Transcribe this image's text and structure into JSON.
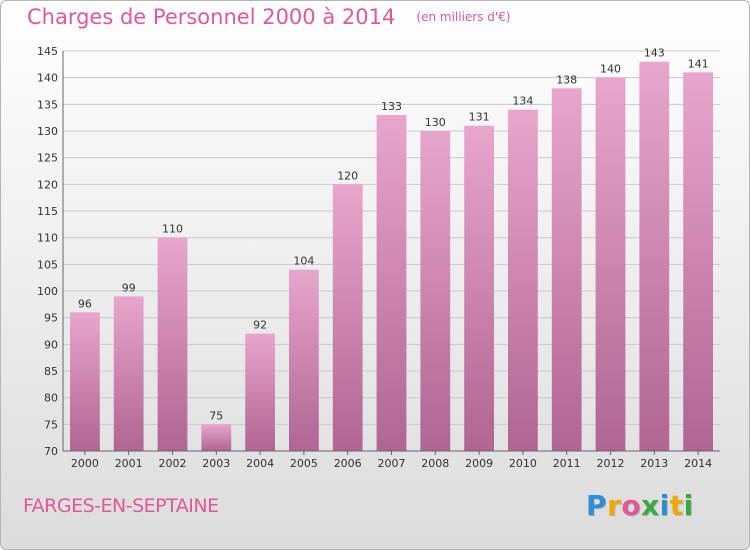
{
  "title": "Charges de Personnel 2000 à 2014",
  "subtitle": "(en milliers d'€)",
  "place": "FARGES-EN-SEPTAINE",
  "brand": {
    "letters": [
      "P",
      "r",
      "o",
      "x",
      "i",
      "t",
      "i"
    ],
    "colors": [
      "#2b8fd6",
      "#f0a800",
      "#e0589a",
      "#3aa842",
      "#2b8fd6",
      "#f0a800",
      "#3aa842"
    ]
  },
  "colors": {
    "accent": "#e0589a",
    "bar_top": "#e8a6cc",
    "bar_bottom": "#b06592",
    "grid": "#c8c8c8"
  },
  "chart_data": {
    "type": "bar",
    "title": "Charges de Personnel 2000 à 2014",
    "subtitle": "(en milliers d'€)",
    "categories": [
      "2000",
      "2001",
      "2002",
      "2003",
      "2004",
      "2005",
      "2006",
      "2007",
      "2008",
      "2009",
      "2010",
      "2011",
      "2012",
      "2013",
      "2014"
    ],
    "values": [
      96,
      99,
      110,
      75,
      92,
      104,
      120,
      133,
      130,
      131,
      134,
      138,
      140,
      143,
      141
    ],
    "ylim": [
      70,
      145
    ],
    "yticks": [
      70,
      75,
      80,
      85,
      90,
      95,
      100,
      105,
      110,
      115,
      120,
      125,
      130,
      135,
      140,
      145
    ],
    "grid": true,
    "data_labels": true
  }
}
